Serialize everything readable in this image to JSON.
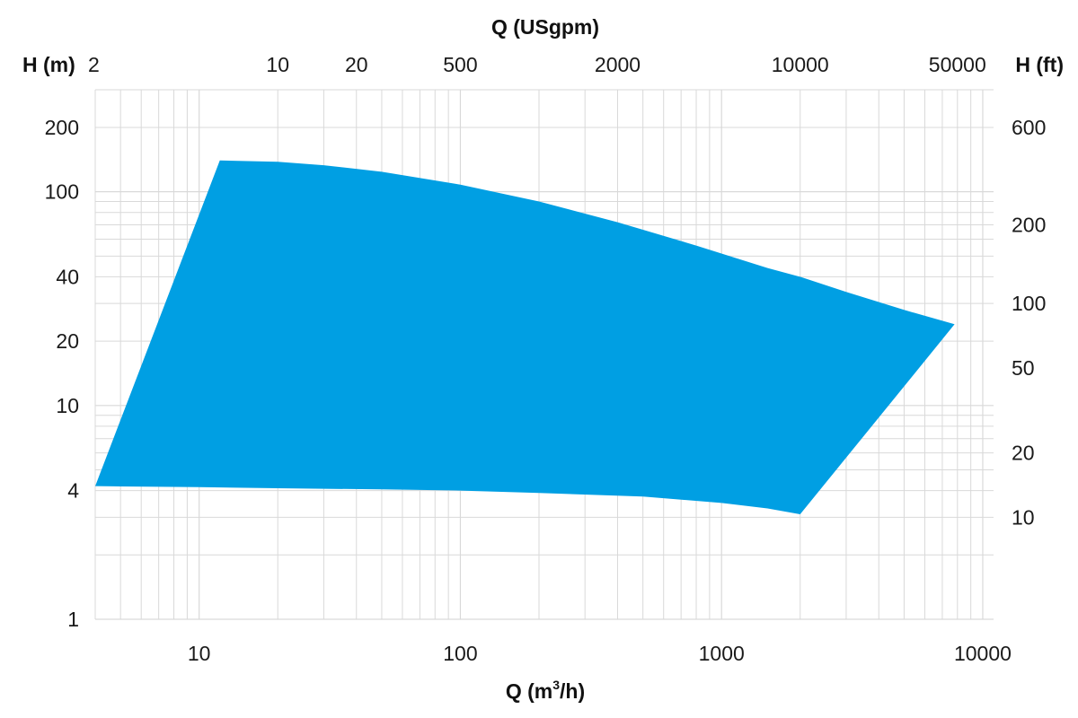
{
  "chart_data": {
    "type": "area",
    "x_scale": "log",
    "y_scale": "log",
    "grid": true,
    "fill_color": "#009FE3",
    "grid_color": "#D9D9D9",
    "xlabel_bottom": "Q (m",
    "xlabel_bottom_sup": "3",
    "xlabel_bottom_tail": "/h)",
    "xlabel_top": "Q (USgpm)",
    "ylabel_left": "H (m)",
    "ylabel_right": "H (ft)",
    "xlim": [
      4,
      11000
    ],
    "ylim": [
      1,
      300
    ],
    "x_ticks_bottom": [
      {
        "value": 10,
        "label": "10"
      },
      {
        "value": 100,
        "label": "100"
      },
      {
        "value": 1000,
        "label": "1000"
      },
      {
        "value": 10000,
        "label": "10000"
      }
    ],
    "x_ticks_top": [
      {
        "value": 4,
        "label": "2"
      },
      {
        "value": 20,
        "label": "10"
      },
      {
        "value": 40,
        "label": "20"
      },
      {
        "value": 100,
        "label": "500"
      },
      {
        "value": 400,
        "label": "2000"
      },
      {
        "value": 2000,
        "label": "10000"
      },
      {
        "value": 8000,
        "label": "50000"
      }
    ],
    "y_ticks_left": [
      {
        "value": 1,
        "label": "1"
      },
      {
        "value": 4,
        "label": "4"
      },
      {
        "value": 10,
        "label": "10"
      },
      {
        "value": 20,
        "label": "20"
      },
      {
        "value": 40,
        "label": "40"
      },
      {
        "value": 100,
        "label": "100"
      },
      {
        "value": 200,
        "label": "200"
      }
    ],
    "y_ticks_right": [
      {
        "value": 200,
        "label": "600"
      },
      {
        "value": 70,
        "label": "200"
      },
      {
        "value": 30,
        "label": "100"
      },
      {
        "value": 15,
        "label": "50"
      },
      {
        "value": 6,
        "label": "20"
      },
      {
        "value": 3,
        "label": "10"
      }
    ],
    "envelope": {
      "upper_curve": {
        "x": [
          12,
          20,
          30,
          50,
          100,
          200,
          400,
          800,
          1500,
          2000,
          3000,
          5000,
          7800
        ],
        "y": [
          140,
          138,
          133,
          124,
          108,
          90,
          72,
          56,
          44,
          40,
          34,
          28,
          24
        ]
      },
      "right_edge": {
        "x": [
          7800,
          2000
        ],
        "y": [
          24,
          3.1
        ]
      },
      "lower_curve": {
        "x": [
          2000,
          1500,
          1000,
          500,
          200,
          100,
          50,
          20,
          10,
          5,
          4
        ],
        "y": [
          3.1,
          3.3,
          3.5,
          3.75,
          3.9,
          4.0,
          4.05,
          4.1,
          4.15,
          4.18,
          4.2
        ]
      },
      "left_edge": {
        "x": [
          4,
          12
        ],
        "y": [
          4.2,
          140
        ]
      }
    }
  }
}
